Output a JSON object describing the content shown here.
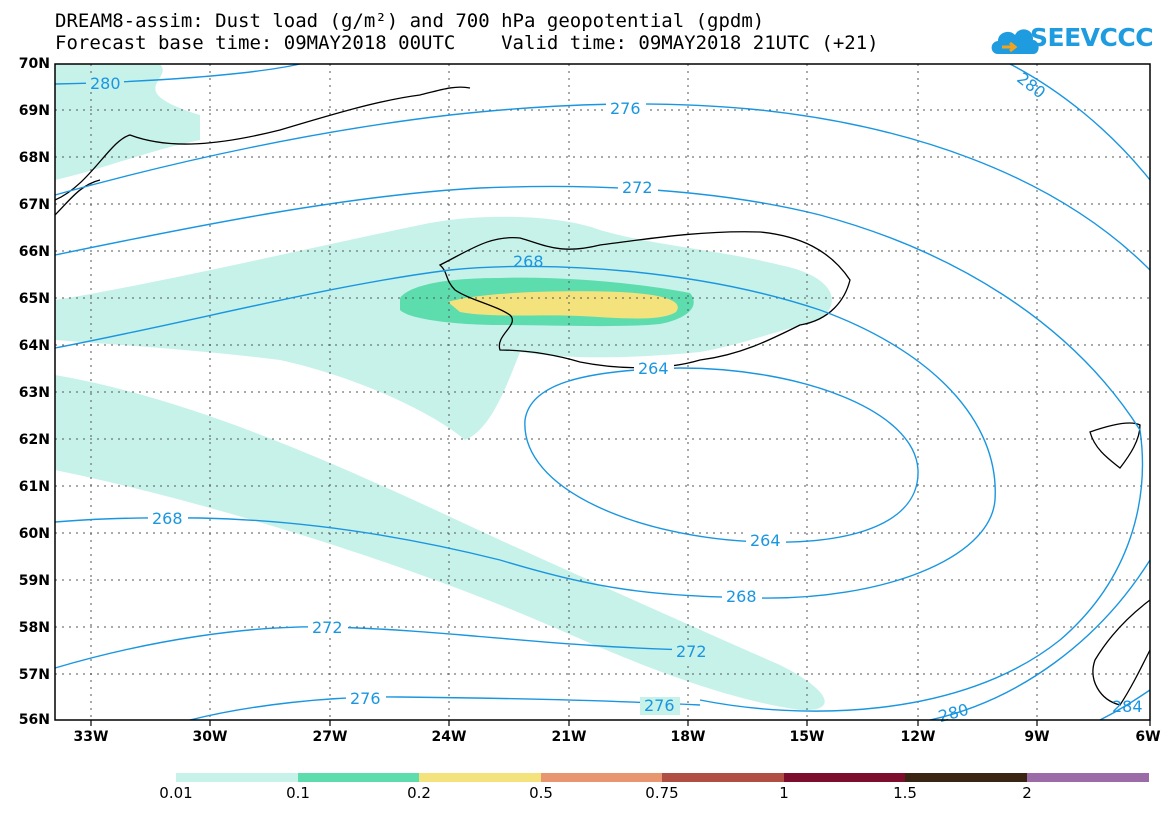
{
  "header": {
    "title_line1": "DREAM8-assim: Dust load (g/m²) and 700 hPa geopotential (gpdm)",
    "title_line2": "Forecast base time: 09MAY2018 00UTC    Valid time: 09MAY2018 21UTC (+21)",
    "logo_text": "SEEVCCC",
    "logo_icon": "cloud-icon"
  },
  "map": {
    "lat_labels": [
      "70N",
      "69N",
      "68N",
      "67N",
      "66N",
      "65N",
      "64N",
      "63N",
      "62N",
      "61N",
      "60N",
      "59N",
      "58N",
      "57N",
      "56N"
    ],
    "lon_labels": [
      "33W",
      "30W",
      "27W",
      "24W",
      "21W",
      "18W",
      "15W",
      "12W",
      "9W",
      "6W"
    ],
    "contour_labels": {
      "c280_top": "280",
      "c276_top": "276",
      "c272_top": "272",
      "c268_top": "268",
      "c264_mid": "264",
      "c264_low": "264",
      "c268_west": "268",
      "c268_low": "268",
      "c272_west": "272",
      "c272_low": "272",
      "c276_west": "276",
      "c276_low": "276",
      "c280_ne": "280",
      "c280_se": "280",
      "c284_se": "284"
    },
    "colors": {
      "contour": "#1a96e0",
      "coast": "#000000",
      "grid": "#555555",
      "dust_001": "#c6f2ea",
      "dust_01": "#5ddcae",
      "dust_02": "#f4e37c"
    }
  },
  "colorbar": {
    "labels": [
      "0.01",
      "0.1",
      "0.2",
      "0.5",
      "0.75",
      "1",
      "1.5",
      "2"
    ],
    "colors": [
      "#c6f2ea",
      "#5ddcae",
      "#f4e37c",
      "#e79670",
      "#b04e44",
      "#7c0d2c",
      "#3a2414",
      "#9a6ba6"
    ]
  }
}
